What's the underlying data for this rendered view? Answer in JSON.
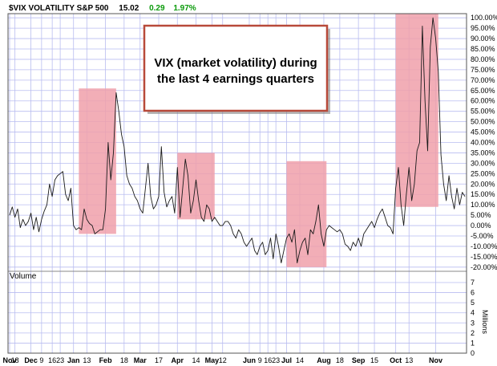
{
  "chart_data": {
    "type": "line",
    "header": {
      "symbol": "$VIX VOLATILITY S&P 500",
      "last": "15.02",
      "change": "0.29",
      "change_pct": "1.97%",
      "change_color": "#0a9a0a"
    },
    "annotation": [
      "VIX (market volatility) during",
      "the last 4 earnings quarters"
    ],
    "volume_label": "Volume",
    "volume_unit": "Millions",
    "y_ticks": [
      "100.00%",
      "95.00%",
      "90.00%",
      "85.00%",
      "80.00%",
      "75.00%",
      "70.00%",
      "65.00%",
      "60.00%",
      "55.00%",
      "50.00%",
      "45.00%",
      "40.00%",
      "35.00%",
      "30.00%",
      "25.00%",
      "20.00%",
      "15.00%",
      "10.00%",
      "5.00%",
      "0.00%",
      "-5.00%",
      "-10.00%",
      "-15.00%",
      "-20.00%"
    ],
    "volume_ticks": [
      "7",
      "6",
      "5",
      "4",
      "3",
      "2",
      "1",
      "0"
    ],
    "ylim": [
      -22,
      102
    ],
    "x_ticks": [
      {
        "label": "Nov",
        "i": 0
      },
      {
        "label": "18",
        "i": 2
      },
      {
        "label": "Dec",
        "i": 8
      },
      {
        "label": "9",
        "i": 12
      },
      {
        "label": "16",
        "i": 16
      },
      {
        "label": "23",
        "i": 19
      },
      {
        "label": "Jan",
        "i": 24
      },
      {
        "label": "13",
        "i": 29
      },
      {
        "label": "Feb",
        "i": 36
      },
      {
        "label": "18",
        "i": 43
      },
      {
        "label": "Mar",
        "i": 49
      },
      {
        "label": "17",
        "i": 56
      },
      {
        "label": "Apr",
        "i": 63
      },
      {
        "label": "14",
        "i": 70
      },
      {
        "label": "May",
        "i": 76
      },
      {
        "label": "12",
        "i": 80
      },
      {
        "label": "Jun",
        "i": 90
      },
      {
        "label": "9",
        "i": 94
      },
      {
        "label": "16",
        "i": 97
      },
      {
        "label": "23",
        "i": 100
      },
      {
        "label": "Jul",
        "i": 104
      },
      {
        "label": "14",
        "i": 109
      },
      {
        "label": "Aug",
        "i": 118
      },
      {
        "label": "18",
        "i": 124
      },
      {
        "label": "Sep",
        "i": 131
      },
      {
        "label": "15",
        "i": 137
      },
      {
        "label": "Oct",
        "i": 145
      },
      {
        "label": "13",
        "i": 150
      },
      {
        "label": "Nov",
        "i": 160
      }
    ],
    "highlight_regions": [
      {
        "x_start": 26,
        "x_end": 40,
        "y_low": -4,
        "y_high": 66,
        "color": "#f0a0aa"
      },
      {
        "x_start": 63,
        "x_end": 77,
        "y_low": 3,
        "y_high": 35,
        "color": "#f0a0aa"
      },
      {
        "x_start": 104,
        "x_end": 119,
        "y_low": -20,
        "y_high": 31,
        "color": "#f0a0aa"
      },
      {
        "x_start": 145,
        "x_end": 161,
        "y_low": 9,
        "y_high": 102,
        "color": "#f0a0aa"
      }
    ],
    "values": [
      5,
      9,
      4,
      8,
      -1,
      3,
      0,
      2,
      6,
      -2,
      4,
      -3,
      3,
      7,
      10,
      20,
      14,
      22,
      24,
      25,
      26,
      15,
      12,
      18,
      0,
      -2,
      -1,
      -2,
      8,
      3,
      1,
      0,
      -4,
      -3,
      -2,
      -2,
      8,
      40,
      22,
      35,
      64,
      55,
      44,
      38,
      24,
      20,
      18,
      14,
      12,
      8,
      6,
      18,
      30,
      14,
      8,
      10,
      14,
      38,
      16,
      9,
      12,
      14,
      6,
      28,
      4,
      18,
      32,
      24,
      6,
      12,
      22,
      12,
      4,
      2,
      10,
      8,
      2,
      4,
      2,
      0,
      0,
      2,
      2,
      0,
      -4,
      -6,
      -2,
      -4,
      -8,
      -10,
      -8,
      -6,
      -12,
      -14,
      -10,
      -8,
      -14,
      -12,
      -6,
      -16,
      -4,
      -10,
      -18,
      -12,
      -6,
      -4,
      -8,
      -2,
      -18,
      -12,
      -8,
      -6,
      -14,
      -2,
      -4,
      2,
      10,
      -4,
      -10,
      -2,
      0,
      -1,
      -2,
      -3,
      -2,
      -4,
      -9,
      -10,
      -12,
      -8,
      -10,
      -6,
      -10,
      -4,
      -2,
      0,
      2,
      -1,
      3,
      6,
      8,
      4,
      0,
      -1,
      -4,
      18,
      28,
      10,
      0,
      15,
      28,
      12,
      20,
      36,
      40,
      96,
      60,
      36,
      86,
      100,
      90,
      74,
      34,
      20,
      12,
      24,
      14,
      8,
      18,
      10,
      16,
      14
    ]
  }
}
